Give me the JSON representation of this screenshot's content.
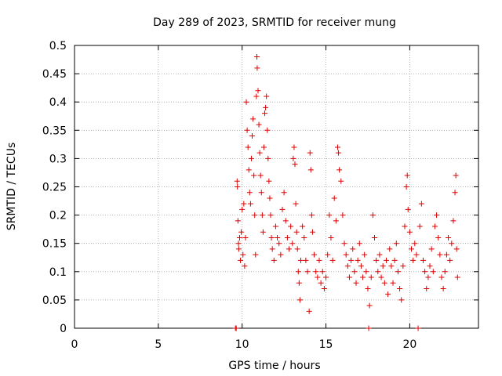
{
  "chart_data": {
    "type": "scatter",
    "title": "Day 289 of 2023, SRMTID for receiver mung",
    "xlabel": "GPS time / hours",
    "ylabel": "SRMTID / TECUs",
    "xlim": [
      0,
      24.1
    ],
    "ylim": [
      0,
      0.5
    ],
    "x_ticks": [
      0,
      5,
      10,
      15,
      20
    ],
    "x_tick_labels": [
      "0",
      "5",
      "10",
      "15",
      "20"
    ],
    "y_ticks": [
      0,
      0.05,
      0.1,
      0.15,
      0.2,
      0.25,
      0.3,
      0.35,
      0.4,
      0.45,
      0.5
    ],
    "y_tick_labels": [
      "0",
      "0.05",
      "0.1",
      "0.15",
      "0.2",
      "0.25",
      "0.3",
      "0.35",
      "0.4",
      "0.45",
      "0.5"
    ],
    "grid": true,
    "marker": "plus",
    "series_color": "#dd0000",
    "points": [
      [
        9.6,
        0.0
      ],
      [
        9.65,
        0.0
      ],
      [
        9.7,
        0.26
      ],
      [
        9.72,
        0.25
      ],
      [
        9.75,
        0.19
      ],
      [
        9.78,
        0.15
      ],
      [
        9.8,
        0.14
      ],
      [
        9.85,
        0.16
      ],
      [
        9.9,
        0.12
      ],
      [
        9.95,
        0.17
      ],
      [
        10.0,
        0.21
      ],
      [
        10.05,
        0.13
      ],
      [
        10.1,
        0.22
      ],
      [
        10.15,
        0.11
      ],
      [
        10.2,
        0.16
      ],
      [
        10.25,
        0.4
      ],
      [
        10.3,
        0.35
      ],
      [
        10.35,
        0.32
      ],
      [
        10.4,
        0.28
      ],
      [
        10.45,
        0.24
      ],
      [
        10.5,
        0.22
      ],
      [
        10.55,
        0.3
      ],
      [
        10.6,
        0.34
      ],
      [
        10.65,
        0.37
      ],
      [
        10.7,
        0.27
      ],
      [
        10.75,
        0.2
      ],
      [
        10.8,
        0.13
      ],
      [
        10.85,
        0.41
      ],
      [
        10.88,
        0.48
      ],
      [
        10.9,
        0.46
      ],
      [
        10.95,
        0.42
      ],
      [
        11.0,
        0.36
      ],
      [
        11.05,
        0.31
      ],
      [
        11.1,
        0.27
      ],
      [
        11.15,
        0.24
      ],
      [
        11.2,
        0.2
      ],
      [
        11.25,
        0.17
      ],
      [
        11.3,
        0.32
      ],
      [
        11.35,
        0.38
      ],
      [
        11.4,
        0.39
      ],
      [
        11.45,
        0.41
      ],
      [
        11.5,
        0.35
      ],
      [
        11.55,
        0.3
      ],
      [
        11.6,
        0.26
      ],
      [
        11.65,
        0.23
      ],
      [
        11.7,
        0.2
      ],
      [
        11.75,
        0.16
      ],
      [
        11.8,
        0.14
      ],
      [
        11.9,
        0.12
      ],
      [
        12.0,
        0.18
      ],
      [
        12.1,
        0.16
      ],
      [
        12.2,
        0.15
      ],
      [
        12.3,
        0.13
      ],
      [
        12.4,
        0.21
      ],
      [
        12.5,
        0.24
      ],
      [
        12.6,
        0.19
      ],
      [
        12.7,
        0.16
      ],
      [
        12.8,
        0.14
      ],
      [
        12.9,
        0.18
      ],
      [
        13.0,
        0.15
      ],
      [
        13.05,
        0.3
      ],
      [
        13.1,
        0.32
      ],
      [
        13.15,
        0.29
      ],
      [
        13.2,
        0.22
      ],
      [
        13.25,
        0.17
      ],
      [
        13.3,
        0.14
      ],
      [
        13.35,
        0.1
      ],
      [
        13.4,
        0.08
      ],
      [
        13.45,
        0.05
      ],
      [
        13.5,
        0.12
      ],
      [
        13.6,
        0.18
      ],
      [
        13.7,
        0.16
      ],
      [
        13.8,
        0.12
      ],
      [
        13.9,
        0.1
      ],
      [
        14.0,
        0.03
      ],
      [
        14.05,
        0.31
      ],
      [
        14.1,
        0.28
      ],
      [
        14.15,
        0.2
      ],
      [
        14.2,
        0.17
      ],
      [
        14.3,
        0.13
      ],
      [
        14.4,
        0.1
      ],
      [
        14.5,
        0.09
      ],
      [
        14.6,
        0.12
      ],
      [
        14.7,
        0.08
      ],
      [
        14.8,
        0.1
      ],
      [
        14.9,
        0.07
      ],
      [
        15.0,
        0.09
      ],
      [
        15.1,
        0.13
      ],
      [
        15.2,
        0.2
      ],
      [
        15.3,
        0.16
      ],
      [
        15.4,
        0.12
      ],
      [
        15.5,
        0.23
      ],
      [
        15.6,
        0.19
      ],
      [
        15.7,
        0.32
      ],
      [
        15.75,
        0.31
      ],
      [
        15.8,
        0.28
      ],
      [
        15.9,
        0.26
      ],
      [
        16.0,
        0.2
      ],
      [
        16.1,
        0.15
      ],
      [
        16.2,
        0.13
      ],
      [
        16.3,
        0.11
      ],
      [
        16.4,
        0.09
      ],
      [
        16.5,
        0.12
      ],
      [
        16.6,
        0.14
      ],
      [
        16.7,
        0.1
      ],
      [
        16.8,
        0.08
      ],
      [
        16.9,
        0.12
      ],
      [
        17.0,
        0.15
      ],
      [
        17.1,
        0.11
      ],
      [
        17.2,
        0.09
      ],
      [
        17.3,
        0.13
      ],
      [
        17.4,
        0.1
      ],
      [
        17.5,
        0.07
      ],
      [
        17.55,
        0.0
      ],
      [
        17.6,
        0.04
      ],
      [
        17.7,
        0.09
      ],
      [
        17.8,
        0.2
      ],
      [
        17.9,
        0.16
      ],
      [
        18.0,
        0.12
      ],
      [
        18.1,
        0.1
      ],
      [
        18.2,
        0.13
      ],
      [
        18.3,
        0.09
      ],
      [
        18.4,
        0.11
      ],
      [
        18.5,
        0.08
      ],
      [
        18.6,
        0.12
      ],
      [
        18.7,
        0.06
      ],
      [
        18.8,
        0.14
      ],
      [
        18.9,
        0.11
      ],
      [
        19.0,
        0.08
      ],
      [
        19.1,
        0.12
      ],
      [
        19.2,
        0.15
      ],
      [
        19.3,
        0.1
      ],
      [
        19.4,
        0.07
      ],
      [
        19.5,
        0.05
      ],
      [
        19.6,
        0.11
      ],
      [
        19.7,
        0.18
      ],
      [
        19.8,
        0.25
      ],
      [
        19.85,
        0.27
      ],
      [
        19.9,
        0.21
      ],
      [
        20.0,
        0.17
      ],
      [
        20.1,
        0.14
      ],
      [
        20.2,
        0.12
      ],
      [
        20.3,
        0.15
      ],
      [
        20.4,
        0.13
      ],
      [
        20.5,
        0.0
      ],
      [
        20.6,
        0.18
      ],
      [
        20.7,
        0.22
      ],
      [
        20.8,
        0.12
      ],
      [
        20.9,
        0.1
      ],
      [
        21.0,
        0.07
      ],
      [
        21.1,
        0.09
      ],
      [
        21.2,
        0.11
      ],
      [
        21.3,
        0.14
      ],
      [
        21.4,
        0.1
      ],
      [
        21.5,
        0.18
      ],
      [
        21.6,
        0.2
      ],
      [
        21.7,
        0.16
      ],
      [
        21.8,
        0.13
      ],
      [
        21.9,
        0.09
      ],
      [
        22.0,
        0.07
      ],
      [
        22.1,
        0.1
      ],
      [
        22.2,
        0.13
      ],
      [
        22.3,
        0.16
      ],
      [
        22.4,
        0.12
      ],
      [
        22.5,
        0.15
      ],
      [
        22.6,
        0.19
      ],
      [
        22.7,
        0.24
      ],
      [
        22.75,
        0.27
      ],
      [
        22.8,
        0.14
      ],
      [
        22.85,
        0.09
      ]
    ]
  }
}
